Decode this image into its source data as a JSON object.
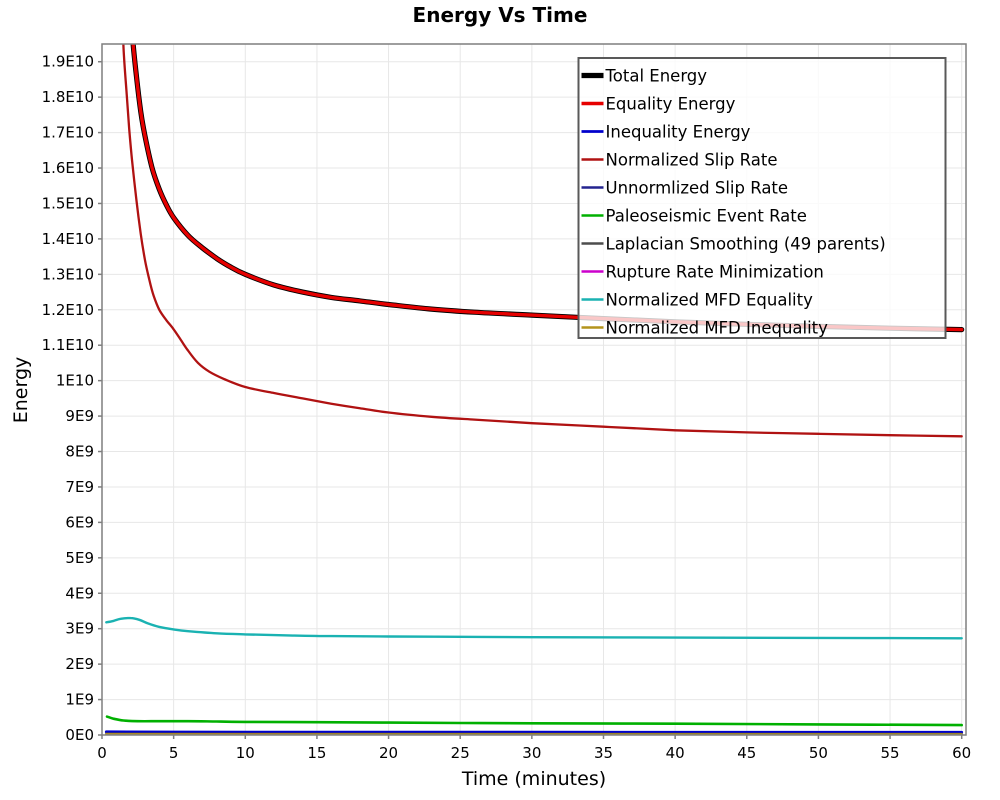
{
  "window": {
    "title": "Energy Vs Time"
  },
  "chart_data": {
    "type": "line",
    "title": "Energy Vs Time",
    "xlabel": "Time (minutes)",
    "ylabel": "Energy",
    "xlim": [
      0,
      60.3
    ],
    "ylim": [
      0,
      19500000000
    ],
    "y_value_unit": 1000000000,
    "grid": true,
    "x_ticks": [
      0,
      5,
      10,
      15,
      20,
      25,
      30,
      35,
      40,
      45,
      50,
      55,
      60
    ],
    "y_ticks_e9": [
      0,
      1,
      2,
      3,
      4,
      5,
      6,
      7,
      8,
      9,
      10,
      11,
      12,
      13,
      14,
      15,
      16,
      17,
      18,
      19
    ],
    "y_tick_labels": [
      "0E0",
      "1E9",
      "2E9",
      "3E9",
      "4E9",
      "5E9",
      "6E9",
      "7E9",
      "8E9",
      "9E9",
      "1E10",
      "1.1E10",
      "1.2E10",
      "1.3E10",
      "1.4E10",
      "1.5E10",
      "1.6E10",
      "1.7E10",
      "1.8E10",
      "1.9E10"
    ],
    "legend_position": "top-right",
    "colors": {
      "grid": "#e7e7e7",
      "plot_border": "#7f7f7f",
      "legend_border": "#595959",
      "legend_background": "rgba(255,255,255,0.78)"
    },
    "series": [
      {
        "name": "Total Energy",
        "color": "#000000",
        "width": 5.2,
        "points_e9": [
          [
            1.9,
            21
          ],
          [
            2.15,
            19.6
          ],
          [
            2.4,
            18.6
          ],
          [
            2.7,
            17.6
          ],
          [
            3,
            16.9
          ],
          [
            3.5,
            16.0
          ],
          [
            4,
            15.4
          ],
          [
            4.5,
            14.95
          ],
          [
            5,
            14.6
          ],
          [
            6,
            14.1
          ],
          [
            7,
            13.75
          ],
          [
            8,
            13.45
          ],
          [
            9,
            13.2
          ],
          [
            10,
            13.0
          ],
          [
            12,
            12.7
          ],
          [
            14,
            12.5
          ],
          [
            16,
            12.35
          ],
          [
            18,
            12.25
          ],
          [
            20,
            12.15
          ],
          [
            23,
            12.02
          ],
          [
            26,
            11.93
          ],
          [
            30,
            11.85
          ],
          [
            35,
            11.75
          ],
          [
            40,
            11.66
          ],
          [
            45,
            11.59
          ],
          [
            50,
            11.53
          ],
          [
            55,
            11.48
          ],
          [
            60,
            11.44
          ]
        ]
      },
      {
        "name": "Equality Energy",
        "color": "#e60000",
        "width": 3.4,
        "points_e9": [
          [
            1.9,
            21
          ],
          [
            2.15,
            19.6
          ],
          [
            2.4,
            18.6
          ],
          [
            2.7,
            17.6
          ],
          [
            3,
            16.9
          ],
          [
            3.5,
            16.0
          ],
          [
            4,
            15.4
          ],
          [
            4.5,
            14.95
          ],
          [
            5,
            14.6
          ],
          [
            6,
            14.1
          ],
          [
            7,
            13.75
          ],
          [
            8,
            13.45
          ],
          [
            9,
            13.2
          ],
          [
            10,
            13.0
          ],
          [
            12,
            12.7
          ],
          [
            14,
            12.5
          ],
          [
            16,
            12.35
          ],
          [
            18,
            12.25
          ],
          [
            20,
            12.15
          ],
          [
            23,
            12.02
          ],
          [
            26,
            11.93
          ],
          [
            30,
            11.85
          ],
          [
            35,
            11.75
          ],
          [
            40,
            11.66
          ],
          [
            45,
            11.59
          ],
          [
            50,
            11.53
          ],
          [
            55,
            11.48
          ],
          [
            60,
            11.44
          ]
        ]
      },
      {
        "name": "Inequality Energy",
        "color": "#0000cc",
        "width": 2.8,
        "points_e9": [
          [
            0.3,
            0.09
          ],
          [
            5,
            0.085
          ],
          [
            15,
            0.08
          ],
          [
            30,
            0.078
          ],
          [
            60,
            0.075
          ]
        ]
      },
      {
        "name": "Normalized Slip Rate",
        "color": "#b01212",
        "width": 2.3,
        "points_e9": [
          [
            1.35,
            21
          ],
          [
            1.5,
            19.4
          ],
          [
            1.7,
            18.2
          ],
          [
            1.9,
            17.1
          ],
          [
            2.1,
            16.2
          ],
          [
            2.4,
            15.1
          ],
          [
            2.7,
            14.15
          ],
          [
            3.0,
            13.4
          ],
          [
            3.3,
            12.85
          ],
          [
            3.6,
            12.4
          ],
          [
            4.0,
            12.0
          ],
          [
            4.5,
            11.7
          ],
          [
            5,
            11.45
          ],
          [
            5.5,
            11.15
          ],
          [
            6,
            10.85
          ],
          [
            6.7,
            10.5
          ],
          [
            7.5,
            10.25
          ],
          [
            8.5,
            10.05
          ],
          [
            10,
            9.82
          ],
          [
            12,
            9.65
          ],
          [
            14,
            9.5
          ],
          [
            16,
            9.35
          ],
          [
            18,
            9.22
          ],
          [
            20,
            9.1
          ],
          [
            23,
            8.98
          ],
          [
            26,
            8.9
          ],
          [
            30,
            8.8
          ],
          [
            35,
            8.7
          ],
          [
            40,
            8.6
          ],
          [
            45,
            8.54
          ],
          [
            50,
            8.5
          ],
          [
            55,
            8.46
          ],
          [
            60,
            8.43
          ]
        ]
      },
      {
        "name": "Unnormlized Slip Rate",
        "color": "#24248f",
        "width": 2.1,
        "points_e9": [
          [
            0.3,
            0.05
          ],
          [
            10,
            0.045
          ],
          [
            30,
            0.042
          ],
          [
            60,
            0.04
          ]
        ]
      },
      {
        "name": "Paleoseismic Event Rate",
        "color": "#00b000",
        "width": 2.6,
        "points_e9": [
          [
            0.35,
            0.52
          ],
          [
            0.8,
            0.46
          ],
          [
            1.5,
            0.41
          ],
          [
            2.5,
            0.39
          ],
          [
            4,
            0.39
          ],
          [
            6,
            0.39
          ],
          [
            8,
            0.38
          ],
          [
            10,
            0.37
          ],
          [
            15,
            0.36
          ],
          [
            20,
            0.35
          ],
          [
            25,
            0.34
          ],
          [
            30,
            0.33
          ],
          [
            40,
            0.32
          ],
          [
            50,
            0.3
          ],
          [
            60,
            0.28
          ]
        ]
      },
      {
        "name": "Laplacian Smoothing (49 parents)",
        "color": "#4d4d4d",
        "width": 2.1,
        "points_e9": [
          [
            0.3,
            0.03
          ],
          [
            10,
            0.028
          ],
          [
            60,
            0.027
          ]
        ]
      },
      {
        "name": "Rupture Rate Minimization",
        "color": "#cc00cc",
        "width": 2.3,
        "points_e9": [
          [
            0.3,
            0.012
          ],
          [
            60,
            0.01
          ]
        ]
      },
      {
        "name": "Normalized MFD Equality",
        "color": "#1ab2b2",
        "width": 2.4,
        "points_e9": [
          [
            0.3,
            3.18
          ],
          [
            0.8,
            3.22
          ],
          [
            1.3,
            3.28
          ],
          [
            2,
            3.3
          ],
          [
            2.6,
            3.25
          ],
          [
            3.2,
            3.15
          ],
          [
            4,
            3.05
          ],
          [
            5,
            2.98
          ],
          [
            6,
            2.93
          ],
          [
            8,
            2.87
          ],
          [
            10,
            2.84
          ],
          [
            13,
            2.81
          ],
          [
            16,
            2.79
          ],
          [
            20,
            2.78
          ],
          [
            25,
            2.77
          ],
          [
            30,
            2.76
          ],
          [
            40,
            2.75
          ],
          [
            50,
            2.74
          ],
          [
            60,
            2.73
          ]
        ]
      },
      {
        "name": "Normalized MFD Inequality",
        "color": "#b3941c",
        "width": 2.3,
        "points_e9": [
          [
            0.3,
            0.02
          ],
          [
            10,
            0.018
          ],
          [
            60,
            0.017
          ]
        ]
      }
    ]
  }
}
